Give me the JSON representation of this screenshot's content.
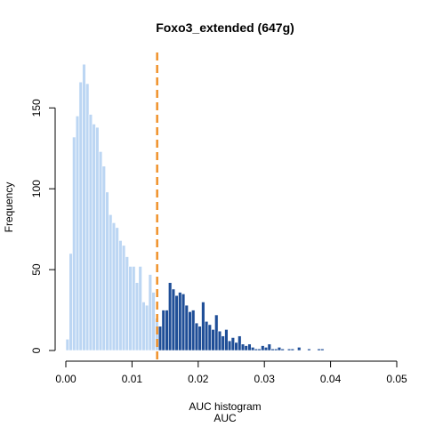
{
  "chart_data": {
    "type": "bar",
    "title": "Foxo3_extended (647g)",
    "xlabel": "AUC histogram",
    "xlabel2": "AUC",
    "ylabel": "Frequency",
    "xlim": [
      0,
      0.05
    ],
    "ylim": [
      0,
      180
    ],
    "xticks": [
      "0.00",
      "0.01",
      "0.02",
      "0.03",
      "0.04",
      "0.05"
    ],
    "xtick_values": [
      0,
      0.01,
      0.02,
      0.03,
      0.04,
      0.05
    ],
    "yticks": [
      "0",
      "50",
      "100",
      "150"
    ],
    "ytick_values": [
      0,
      50,
      100,
      150
    ],
    "bin_start": 0,
    "bin_width": 0.0005,
    "threshold": 0.0138,
    "colors": {
      "below_threshold": "#bcd6f3",
      "above_threshold": "#1f4e97",
      "threshold_line": "#f0922a",
      "bar_border": "#ffffff"
    },
    "values": [
      7,
      60,
      132,
      145,
      166,
      177,
      165,
      146,
      140,
      138,
      123,
      114,
      98,
      84,
      79,
      76,
      68,
      65,
      58,
      52,
      52,
      42,
      52,
      30,
      28,
      47,
      36,
      20,
      15,
      25,
      25,
      42,
      38,
      34,
      36,
      35,
      28,
      24,
      25,
      17,
      15,
      30,
      18,
      16,
      13,
      22,
      12,
      9,
      13,
      6,
      8,
      5,
      9,
      4,
      3,
      4,
      2,
      1,
      1,
      3,
      2,
      4,
      1,
      1,
      2,
      1,
      0,
      1,
      1,
      0,
      2,
      0,
      0,
      1,
      0,
      0,
      1,
      1
    ]
  }
}
